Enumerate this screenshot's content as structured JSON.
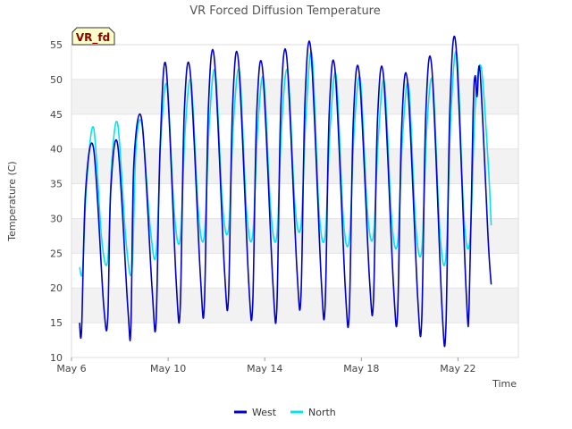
{
  "chart_data": {
    "type": "line",
    "title": "VR Forced Diffusion Temperature",
    "xlabel": "Time",
    "ylabel": "Temperature (C)",
    "badge": "VR_fd",
    "ylim": [
      10,
      55
    ],
    "yticks": [
      10,
      15,
      20,
      25,
      30,
      35,
      40,
      45,
      50,
      55
    ],
    "xlim": [
      "2023-05-06",
      "2023-05-24T12:00"
    ],
    "xticks": [
      {
        "date": "2023-05-06",
        "label": "May 6"
      },
      {
        "date": "2023-05-10",
        "label": "May 10"
      },
      {
        "date": "2023-05-14",
        "label": "May 14"
      },
      {
        "date": "2023-05-18",
        "label": "May 18"
      },
      {
        "date": "2023-05-22",
        "label": "May 22"
      }
    ],
    "grid": "horizontal bands",
    "legend_position": "bottom",
    "series": [
      {
        "name": "West",
        "color": "#0000cc",
        "points": [
          [
            "2023-05-06T08:00",
            15.0
          ],
          [
            "2023-05-06T10:00",
            14.0
          ],
          [
            "2023-05-06T14:00",
            34.0
          ],
          [
            "2023-05-06T22:00",
            40.0
          ],
          [
            "2023-05-07T08:00",
            17.5
          ],
          [
            "2023-05-07T12:00",
            15.5
          ],
          [
            "2023-05-07T15:00",
            34.0
          ],
          [
            "2023-05-07T22:00",
            40.5
          ],
          [
            "2023-05-08T08:00",
            17.0
          ],
          [
            "2023-05-08T11:00",
            14.2
          ],
          [
            "2023-05-08T14:00",
            38.0
          ],
          [
            "2023-05-08T22:00",
            44.0
          ],
          [
            "2023-05-09T08:00",
            20.0
          ],
          [
            "2023-05-09T12:00",
            15.0
          ],
          [
            "2023-05-09T16:00",
            40.0
          ],
          [
            "2023-05-09T22:00",
            51.8
          ],
          [
            "2023-05-10T08:00",
            21.0
          ],
          [
            "2023-05-10T12:00",
            17.0
          ],
          [
            "2023-05-10T16:00",
            45.0
          ],
          [
            "2023-05-10T22:00",
            51.0
          ],
          [
            "2023-05-11T08:00",
            22.0
          ],
          [
            "2023-05-11T12:00",
            17.5
          ],
          [
            "2023-05-11T16:00",
            46.0
          ],
          [
            "2023-05-11T22:00",
            52.9
          ],
          [
            "2023-05-12T08:00",
            22.5
          ],
          [
            "2023-05-12T12:00",
            18.8
          ],
          [
            "2023-05-12T16:00",
            46.0
          ],
          [
            "2023-05-12T22:00",
            52.5
          ],
          [
            "2023-05-13T08:00",
            21.0
          ],
          [
            "2023-05-13T12:00",
            17.5
          ],
          [
            "2023-05-13T16:00",
            45.0
          ],
          [
            "2023-05-13T22:00",
            51.2
          ],
          [
            "2023-05-14T08:00",
            21.0
          ],
          [
            "2023-05-14T12:00",
            17.0
          ],
          [
            "2023-05-14T16:00",
            46.0
          ],
          [
            "2023-05-14T22:00",
            53.0
          ],
          [
            "2023-05-15T08:00",
            22.5
          ],
          [
            "2023-05-15T12:00",
            19.0
          ],
          [
            "2023-05-15T16:00",
            47.0
          ],
          [
            "2023-05-15T22:00",
            54.0
          ],
          [
            "2023-05-16T08:00",
            21.5
          ],
          [
            "2023-05-16T12:00",
            17.5
          ],
          [
            "2023-05-16T16:00",
            45.0
          ],
          [
            "2023-05-16T22:00",
            51.2
          ],
          [
            "2023-05-17T08:00",
            20.0
          ],
          [
            "2023-05-17T12:00",
            16.5
          ],
          [
            "2023-05-17T16:00",
            44.0
          ],
          [
            "2023-05-17T22:00",
            50.7
          ],
          [
            "2023-05-18T08:00",
            21.5
          ],
          [
            "2023-05-18T12:00",
            18.0
          ],
          [
            "2023-05-18T16:00",
            44.0
          ],
          [
            "2023-05-18T22:00",
            50.5
          ],
          [
            "2023-05-19T08:00",
            20.0
          ],
          [
            "2023-05-19T12:00",
            16.5
          ],
          [
            "2023-05-19T16:00",
            43.0
          ],
          [
            "2023-05-19T22:00",
            49.5
          ],
          [
            "2023-05-20T08:00",
            18.5
          ],
          [
            "2023-05-20T12:00",
            15.5
          ],
          [
            "2023-05-20T16:00",
            45.0
          ],
          [
            "2023-05-20T22:00",
            51.6
          ],
          [
            "2023-05-21T08:00",
            17.5
          ],
          [
            "2023-05-21T12:00",
            14.3
          ],
          [
            "2023-05-21T16:00",
            46.0
          ],
          [
            "2023-05-21T22:00",
            54.8
          ],
          [
            "2023-05-22T08:00",
            20.0
          ],
          [
            "2023-05-22T11:00",
            17.0
          ],
          [
            "2023-05-22T15:00",
            45.0
          ],
          [
            "2023-05-22T17:00",
            50.5
          ],
          [
            "2023-05-22T19:00",
            47.5
          ],
          [
            "2023-05-22T22:00",
            51.0
          ],
          [
            "2023-05-23T06:00",
            27.0
          ],
          [
            "2023-05-23T09:00",
            20.5
          ]
        ]
      },
      {
        "name": "North",
        "color": "#00e5ee",
        "points": [
          [
            "2023-05-06T08:00",
            23.0
          ],
          [
            "2023-05-06T11:00",
            22.5
          ],
          [
            "2023-05-06T15:00",
            35.0
          ],
          [
            "2023-05-06T22:00",
            43.0
          ],
          [
            "2023-05-07T06:00",
            27.0
          ],
          [
            "2023-05-07T12:00",
            24.0
          ],
          [
            "2023-05-07T16:00",
            38.0
          ],
          [
            "2023-05-07T22:00",
            43.5
          ],
          [
            "2023-05-08T06:00",
            27.0
          ],
          [
            "2023-05-08T12:00",
            22.5
          ],
          [
            "2023-05-08T16:00",
            40.0
          ],
          [
            "2023-05-08T22:00",
            43.5
          ],
          [
            "2023-05-09T06:00",
            29.0
          ],
          [
            "2023-05-09T12:00",
            24.8
          ],
          [
            "2023-05-09T17:00",
            42.0
          ],
          [
            "2023-05-09T23:00",
            49.0
          ],
          [
            "2023-05-10T06:00",
            31.0
          ],
          [
            "2023-05-10T12:00",
            27.0
          ],
          [
            "2023-05-10T17:00",
            43.0
          ],
          [
            "2023-05-10T23:00",
            49.5
          ],
          [
            "2023-05-11T06:00",
            31.0
          ],
          [
            "2023-05-11T12:00",
            27.5
          ],
          [
            "2023-05-11T17:00",
            44.0
          ],
          [
            "2023-05-11T23:00",
            51.0
          ],
          [
            "2023-05-12T06:00",
            32.0
          ],
          [
            "2023-05-12T12:00",
            28.5
          ],
          [
            "2023-05-12T17:00",
            44.0
          ],
          [
            "2023-05-12T23:00",
            51.0
          ],
          [
            "2023-05-13T06:00",
            31.0
          ],
          [
            "2023-05-13T12:00",
            27.5
          ],
          [
            "2023-05-13T17:00",
            43.0
          ],
          [
            "2023-05-13T23:00",
            50.0
          ],
          [
            "2023-05-14T06:00",
            31.0
          ],
          [
            "2023-05-14T12:00",
            27.5
          ],
          [
            "2023-05-14T17:00",
            44.0
          ],
          [
            "2023-05-14T23:00",
            51.0
          ],
          [
            "2023-05-15T06:00",
            32.0
          ],
          [
            "2023-05-15T12:00",
            29.0
          ],
          [
            "2023-05-15T17:00",
            45.0
          ],
          [
            "2023-05-15T23:00",
            53.5
          ],
          [
            "2023-05-16T06:00",
            31.0
          ],
          [
            "2023-05-16T12:00",
            27.5
          ],
          [
            "2023-05-16T17:00",
            43.0
          ],
          [
            "2023-05-16T23:00",
            50.5
          ],
          [
            "2023-05-17T06:00",
            30.0
          ],
          [
            "2023-05-17T12:00",
            27.0
          ],
          [
            "2023-05-17T17:00",
            43.0
          ],
          [
            "2023-05-17T23:00",
            50.0
          ],
          [
            "2023-05-18T06:00",
            31.0
          ],
          [
            "2023-05-18T12:00",
            27.5
          ],
          [
            "2023-05-18T17:00",
            42.0
          ],
          [
            "2023-05-18T23:00",
            49.5
          ],
          [
            "2023-05-19T06:00",
            30.0
          ],
          [
            "2023-05-19T12:00",
            26.5
          ],
          [
            "2023-05-19T17:00",
            42.0
          ],
          [
            "2023-05-19T23:00",
            49.0
          ],
          [
            "2023-05-20T06:00",
            29.0
          ],
          [
            "2023-05-20T12:00",
            25.5
          ],
          [
            "2023-05-20T17:00",
            43.0
          ],
          [
            "2023-05-20T23:00",
            49.5
          ],
          [
            "2023-05-21T06:00",
            28.0
          ],
          [
            "2023-05-21T12:00",
            24.5
          ],
          [
            "2023-05-21T17:00",
            45.0
          ],
          [
            "2023-05-21T23:00",
            53.5
          ],
          [
            "2023-05-22T06:00",
            30.0
          ],
          [
            "2023-05-22T12:00",
            27.0
          ],
          [
            "2023-05-22T17:00",
            46.0
          ],
          [
            "2023-05-22T23:00",
            51.8
          ],
          [
            "2023-05-23T06:00",
            38.0
          ],
          [
            "2023-05-23T09:00",
            29.0
          ]
        ]
      }
    ]
  }
}
